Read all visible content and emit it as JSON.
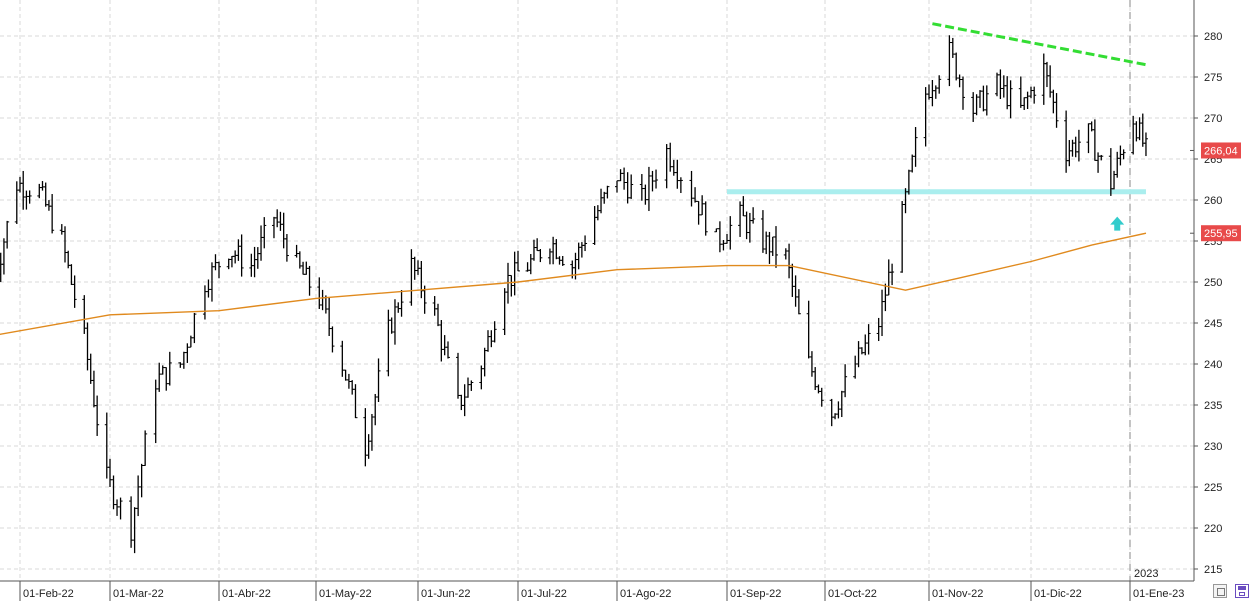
{
  "chart_data": {
    "type": "ohlc",
    "title": "",
    "xlabel": "",
    "ylabel": "",
    "ylim": [
      214,
      285
    ],
    "y_ticks": [
      215,
      220,
      225,
      230,
      235,
      240,
      245,
      250,
      255,
      260,
      265,
      270,
      275,
      280
    ],
    "x_tick_labels": [
      "01-Feb-22",
      "01-Mar-22",
      "01-Abr-22",
      "01-May-22",
      "01-Jun-22",
      "01-Jul-22",
      "01-Ago-22",
      "01-Sep-22",
      "01-Oct-22",
      "01-Nov-22",
      "01-Dic-22",
      "01-Ene-23"
    ],
    "year_marker": "2023",
    "grid": true,
    "last_price_label": "266,04",
    "moving_average_label": "255,95",
    "series_colors": {
      "bars": "#000000",
      "moving_average": "#e08a1e",
      "resistance": "#33dd33",
      "support": "#aaeeee",
      "arrow": "#33cccc",
      "label_bg": "#e84a4a"
    },
    "price_path": [
      [
        "2022-01-24",
        250
      ],
      [
        "2022-01-31",
        262
      ],
      [
        "2022-02-07",
        261
      ],
      [
        "2022-02-14",
        255
      ],
      [
        "2022-02-21",
        243
      ],
      [
        "2022-02-28",
        226
      ],
      [
        "2022-03-07",
        220
      ],
      [
        "2022-03-14",
        238
      ],
      [
        "2022-03-21",
        240
      ],
      [
        "2022-03-28",
        250
      ],
      [
        "2022-04-04",
        254
      ],
      [
        "2022-04-11",
        252
      ],
      [
        "2022-04-18",
        258
      ],
      [
        "2022-04-25",
        252
      ],
      [
        "2022-05-02",
        248
      ],
      [
        "2022-05-09",
        240
      ],
      [
        "2022-05-16",
        230
      ],
      [
        "2022-05-23",
        244
      ],
      [
        "2022-05-30",
        252
      ],
      [
        "2022-06-06",
        246
      ],
      [
        "2022-06-13",
        235
      ],
      [
        "2022-06-20",
        240
      ],
      [
        "2022-06-27",
        250
      ],
      [
        "2022-07-04",
        252
      ],
      [
        "2022-07-11",
        255
      ],
      [
        "2022-07-18",
        252
      ],
      [
        "2022-07-25",
        258
      ],
      [
        "2022-08-01",
        263
      ],
      [
        "2022-08-08",
        260
      ],
      [
        "2022-08-15",
        266
      ],
      [
        "2022-08-22",
        261
      ],
      [
        "2022-08-29",
        255
      ],
      [
        "2022-09-05",
        258
      ],
      [
        "2022-09-12",
        255
      ],
      [
        "2022-09-19",
        253
      ],
      [
        "2022-09-26",
        240
      ],
      [
        "2022-10-03",
        234
      ],
      [
        "2022-10-10",
        240
      ],
      [
        "2022-10-17",
        245
      ],
      [
        "2022-10-24",
        258
      ],
      [
        "2022-10-31",
        273
      ],
      [
        "2022-11-07",
        278
      ],
      [
        "2022-11-14",
        271
      ],
      [
        "2022-11-21",
        274
      ],
      [
        "2022-11-28",
        271
      ],
      [
        "2022-12-05",
        276
      ],
      [
        "2022-12-12",
        266
      ],
      [
        "2022-12-19",
        268
      ],
      [
        "2022-12-26",
        262
      ],
      [
        "2023-01-02",
        270
      ],
      [
        "2023-01-06",
        266
      ]
    ],
    "moving_average": [
      [
        "2022-01-24",
        243.5
      ],
      [
        "2022-03-01",
        246
      ],
      [
        "2022-04-01",
        246.5
      ],
      [
        "2022-05-01",
        248
      ],
      [
        "2022-06-01",
        249
      ],
      [
        "2022-07-01",
        250
      ],
      [
        "2022-08-01",
        251.5
      ],
      [
        "2022-09-01",
        252
      ],
      [
        "2022-09-20",
        252
      ],
      [
        "2022-10-25",
        249
      ],
      [
        "2022-11-10",
        250.5
      ],
      [
        "2022-12-01",
        252.5
      ],
      [
        "2022-12-20",
        254.5
      ],
      [
        "2023-01-06",
        255.95
      ]
    ],
    "resistance_line": [
      [
        "2022-11-02",
        281.5
      ],
      [
        "2023-01-06",
        276.5
      ]
    ],
    "support_line": [
      [
        "2022-09-01",
        261
      ],
      [
        "2023-01-06",
        261
      ]
    ],
    "arrow_at": [
      "2022-12-28",
      257
    ]
  }
}
